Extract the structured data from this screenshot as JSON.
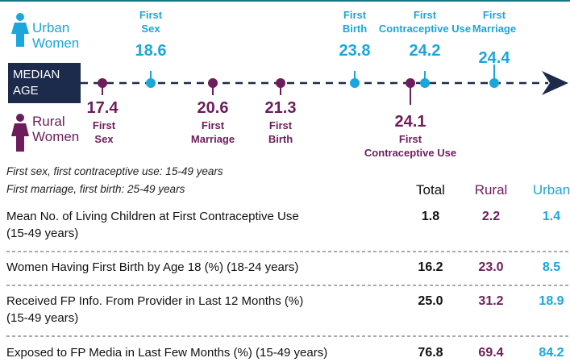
{
  "legend": {
    "urban": "Urban\nWomen",
    "rural": "Rural\nWomen"
  },
  "median_label": "MEDIAN\nAGE",
  "urban_events": [
    {
      "label": "First\nSex",
      "age": "18.6"
    },
    {
      "label": "First\nBirth",
      "age": "23.8"
    },
    {
      "label": "First\nContraceptive Use",
      "age": "24.2"
    },
    {
      "label": "First\nMarriage",
      "age": "24.4"
    }
  ],
  "rural_events": [
    {
      "label": "First\nSex",
      "age": "17.4"
    },
    {
      "label": "First\nMarriage",
      "age": "20.6"
    },
    {
      "label": "First\nBirth",
      "age": "21.3"
    },
    {
      "label": "First\nContraceptive Use",
      "age": "24.1"
    }
  ],
  "notes": [
    "First sex, first contraceptive use: 15-49 years",
    "First marriage, first birth: 25-49 years"
  ],
  "table": {
    "columns": [
      "Total",
      "Rural",
      "Urban"
    ],
    "rows": [
      {
        "label": "Mean No. of Living Children at First Contraceptive Use\n(15-49 years)",
        "values": [
          "1.8",
          "2.2",
          "1.4"
        ]
      },
      {
        "label": "Women Having First Birth by Age 18 (%) (18-24 years)",
        "values": [
          "16.2",
          "23.0",
          "8.5"
        ]
      },
      {
        "label": "Received FP Info. From Provider in Last 12 Months (%)\n(15-49 years)",
        "values": [
          "25.0",
          "31.2",
          "18.9"
        ]
      },
      {
        "label": "Exposed to FP Media in Last Few Months (%) (15-49 years)",
        "values": [
          "76.8",
          "69.4",
          "84.2"
        ]
      }
    ]
  }
}
